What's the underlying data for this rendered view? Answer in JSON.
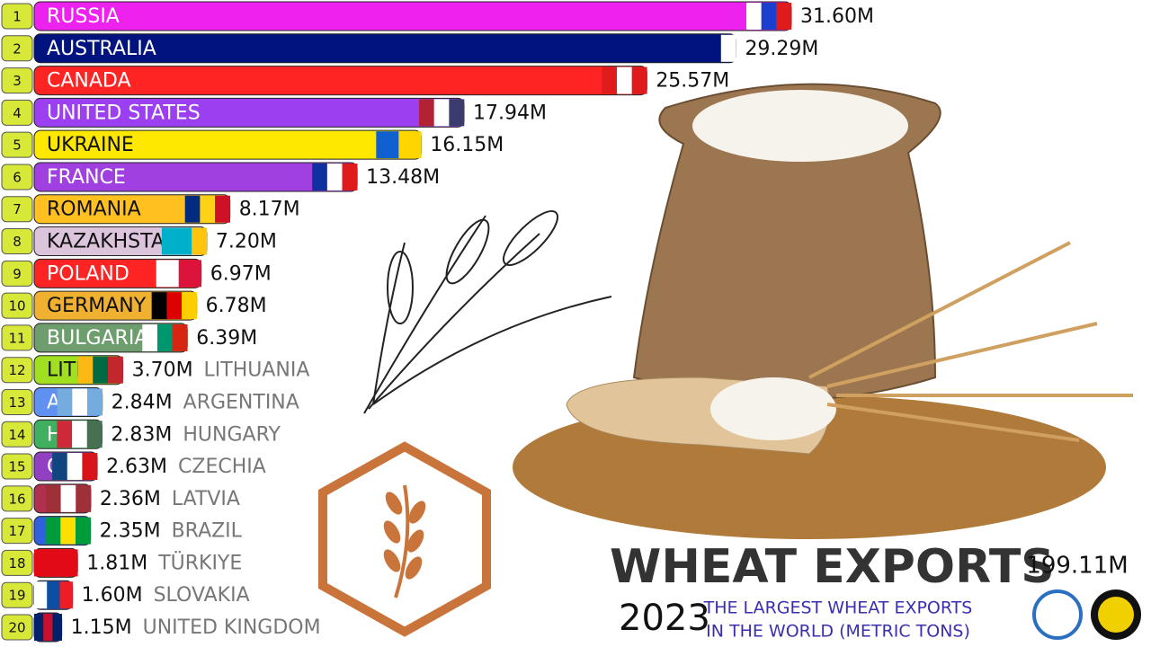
{
  "chart_data": {
    "type": "bar",
    "orientation": "horizontal",
    "title": "WHEAT EXPORTS",
    "year": "2023",
    "subtitle_lines": [
      "THE LARGEST WHEAT EXPORTS",
      "IN THE WORLD (METRIC TONS)"
    ],
    "total_label": "199.11M",
    "ranks": [
      "1",
      "2",
      "3",
      "4",
      "5",
      "6",
      "7",
      "8",
      "9",
      "10",
      "11",
      "12",
      "13",
      "14",
      "15",
      "16",
      "17",
      "18",
      "19",
      "20"
    ],
    "categories": [
      "RUSSIA",
      "AUSTRALIA",
      "CANADA",
      "UNITED STATES",
      "UKRAINE",
      "FRANCE",
      "ROMANIA",
      "KAZAKHSTAN",
      "POLAND",
      "GERMANY",
      "BULGARIA",
      "LITHUANIA",
      "ARGENTINA",
      "HUNGARY",
      "CZECHIA",
      "LATVIA",
      "BRAZIL",
      "TÜRKIYE",
      "SLOVAKIA",
      "UNITED KINGDOM"
    ],
    "values": [
      31.6,
      29.29,
      25.57,
      17.94,
      16.15,
      13.48,
      8.17,
      7.2,
      6.97,
      6.78,
      6.39,
      3.7,
      2.84,
      2.83,
      2.63,
      2.36,
      2.35,
      1.81,
      1.6,
      1.15
    ],
    "value_labels": [
      "31.60M",
      "29.29M",
      "25.57M",
      "17.94M",
      "16.15M",
      "13.48M",
      "8.17M",
      "7.20M",
      "6.97M",
      "6.78M",
      "6.39M",
      "3.70M",
      "2.84M",
      "2.83M",
      "2.63M",
      "2.36M",
      "2.35M",
      "1.81M",
      "1.60M",
      "1.15M"
    ],
    "colors": [
      "#ee22ee",
      "#00137f",
      "#ff2424",
      "#9b3ff0",
      "#ffe800",
      "#a040e0",
      "#ffc020",
      "#dcc4dc",
      "#ff2424",
      "#f0b030",
      "#6e9e6e",
      "#a0e020",
      "#6090f0",
      "#40b060",
      "#9040c0",
      "#b03050",
      "#3060e0",
      "#e02020",
      "#3050c0",
      "#303080"
    ]
  }
}
